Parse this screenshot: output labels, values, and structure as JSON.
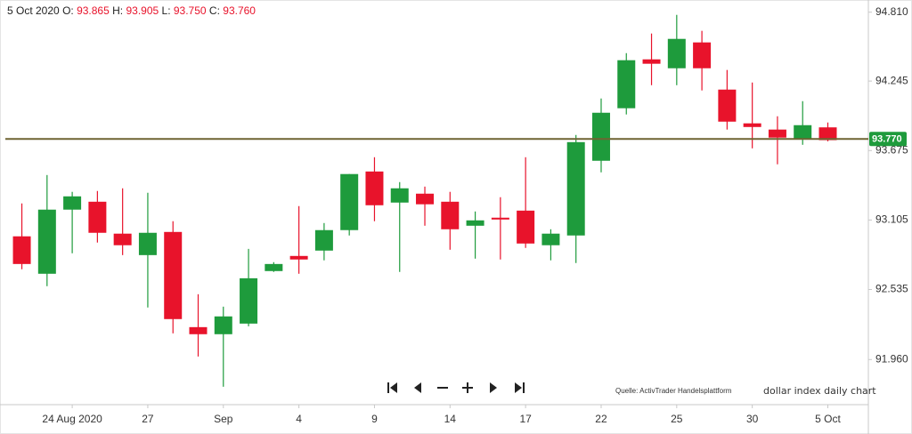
{
  "chart_data": {
    "type": "candlestick",
    "header": {
      "date": "5 Oct 2020",
      "open_label": "O:",
      "open": "93.865",
      "high_label": "H:",
      "high": "93.905",
      "low_label": "L:",
      "low": "93.750",
      "close_label": "C:",
      "close": "93.760"
    },
    "categories": [
      null,
      null,
      "24 Aug 2020",
      null,
      null,
      "27",
      null,
      null,
      "Sep",
      null,
      null,
      "4",
      null,
      null,
      "9",
      null,
      null,
      "14",
      null,
      null,
      "17",
      null,
      null,
      "22",
      null,
      null,
      "25",
      null,
      null,
      "30",
      null,
      null,
      "5 Oct"
    ],
    "open": [
      92.971,
      92.664,
      93.19,
      93.255,
      92.993,
      92.817,
      93.007,
      92.226,
      92.168,
      92.255,
      92.686,
      92.81,
      92.854,
      93.022,
      93.503,
      93.248,
      93.321,
      93.255,
      93.058,
      93.124,
      93.182,
      92.898,
      92.978,
      93.591,
      94.022,
      94.423,
      94.35,
      94.562,
      94.175,
      93.898,
      93.847,
      93.766,
      93.865
    ],
    "high": [
      93.241,
      93.474,
      93.336,
      93.343,
      93.365,
      93.328,
      93.095,
      92.496,
      92.394,
      92.868,
      92.759,
      93.219,
      93.08,
      93.482,
      93.62,
      93.416,
      93.379,
      93.336,
      93.175,
      93.292,
      93.62,
      93.029,
      93.803,
      94.102,
      94.474,
      94.635,
      94.788,
      94.657,
      94.336,
      94.233,
      93.956,
      94.08,
      93.905
    ],
    "low": [
      92.701,
      92.562,
      92.832,
      92.92,
      92.817,
      92.387,
      92.175,
      91.985,
      91.737,
      92.233,
      92.679,
      92.664,
      92.774,
      92.978,
      93.095,
      92.679,
      93.058,
      92.861,
      92.788,
      92.781,
      92.876,
      92.774,
      92.752,
      93.496,
      93.971,
      94.211,
      94.211,
      94.168,
      93.847,
      93.693,
      93.562,
      93.722,
      93.75
    ],
    "close": [
      92.744,
      93.19,
      93.299,
      93.0,
      92.898,
      93.0,
      92.292,
      92.168,
      92.314,
      92.627,
      92.744,
      92.781,
      93.022,
      93.482,
      93.226,
      93.365,
      93.234,
      93.029,
      93.102,
      93.109,
      92.912,
      92.993,
      93.744,
      93.985,
      94.416,
      94.387,
      94.591,
      94.35,
      93.912,
      93.868,
      93.781,
      93.883,
      93.76
    ],
    "up_color": "#1e9b3c",
    "down_color": "#e8132b",
    "ylim": [
      91.59,
      94.91
    ],
    "yticks": [
      {
        "value": 91.96,
        "label": "91.960"
      },
      {
        "value": 92.535,
        "label": "92.535"
      },
      {
        "value": 93.105,
        "label": "93.105"
      },
      {
        "value": 93.675,
        "label": "93.675"
      },
      {
        "value": 94.245,
        "label": "94.245"
      },
      {
        "value": 94.81,
        "label": "94.810"
      }
    ],
    "last_price": {
      "value": 93.77,
      "label": "93.770"
    },
    "source_note": "Quelle: ActivTrader Handelsplattform",
    "caption": "dollar index daily chart"
  }
}
